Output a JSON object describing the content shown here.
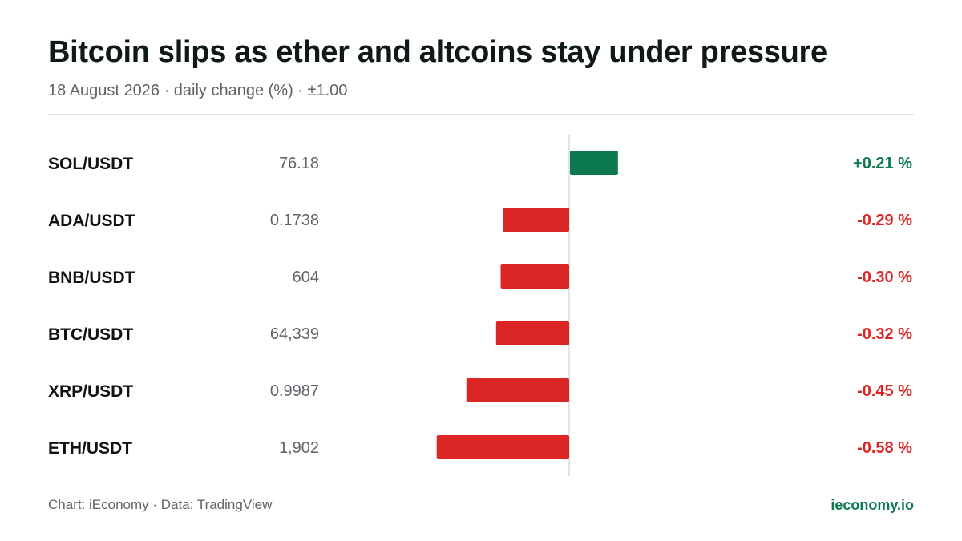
{
  "header": {
    "title": "Bitcoin slips as ether and altcoins stay under pressure",
    "subtitle": "18 August 2026 · daily change (%) · ±1.00"
  },
  "colors": {
    "positive": "#0b7a4e",
    "negative": "#dc2626",
    "axis": "#d9d9d9",
    "pair_text": "#111111",
    "price_text": "#5f6368"
  },
  "chart_data": {
    "type": "bar",
    "orientation": "horizontal",
    "categories": [
      "SOL/USDT",
      "ADA/USDT",
      "BNB/USDT",
      "BTC/USDT",
      "XRP/USDT",
      "ETH/USDT"
    ],
    "prices": [
      "76.18",
      "0.1738",
      "604",
      "64,339",
      "0.9987",
      "1,902"
    ],
    "values": [
      0.21,
      -0.29,
      -0.3,
      -0.32,
      -0.45,
      -0.58
    ],
    "value_labels": [
      "+0.21 %",
      "-0.29 %",
      "-0.30 %",
      "-0.32 %",
      "-0.45 %",
      "-0.58 %"
    ],
    "xlim": [
      -1.0,
      1.0
    ],
    "grid": false,
    "legend": "none"
  },
  "footer": {
    "source": "Chart: iEconomy · Data: TradingView",
    "brand": "ieconomy.io"
  }
}
